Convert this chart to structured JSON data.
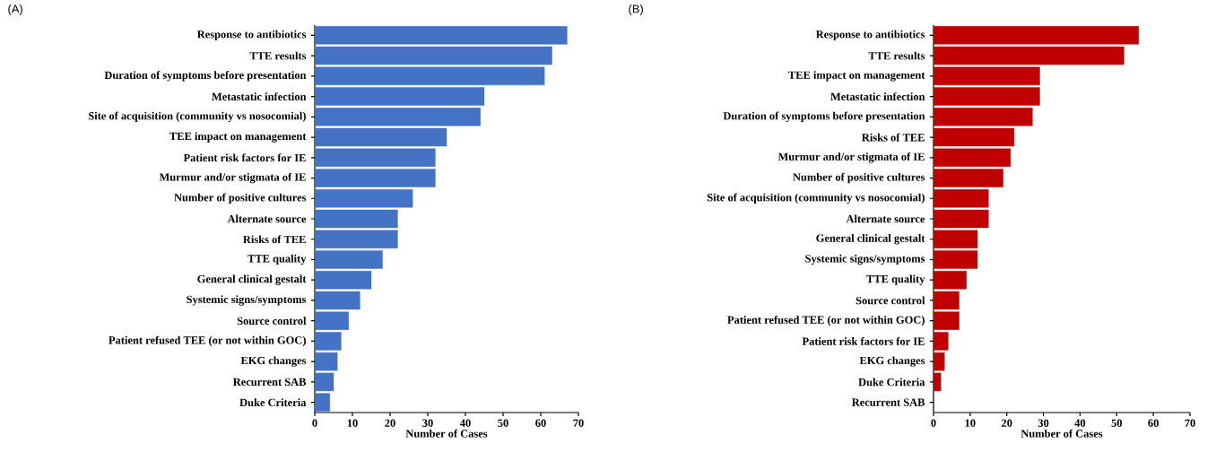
{
  "chart_data": [
    {
      "type": "bar",
      "orientation": "horizontal",
      "title": "(A)",
      "xlabel": "Number of Cases",
      "categories": [
        "Response to antibiotics",
        "TTE results",
        "Duration of symptoms before presentation",
        "Metastatic infection",
        "Site of acquisition (community vs nosocomial)",
        "TEE impact on management",
        "Patient risk factors for IE",
        "Murmur and/or stigmata of IE",
        "Number of positive cultures",
        "Alternate source",
        "Risks of TEE",
        "TTE quality",
        "General clinical gestalt",
        "Systemic signs/symptoms",
        "Source control",
        "Patient refused TEE (or not within GOC)",
        "EKG changes",
        "Recurrent SAB",
        "Duke Criteria"
      ],
      "values": [
        67,
        63,
        61,
        45,
        44,
        35,
        32,
        32,
        26,
        22,
        22,
        18,
        15,
        12,
        9,
        7,
        6,
        5,
        4
      ],
      "color": "#4472c4",
      "xlim": [
        0,
        70
      ],
      "xticks": [
        0,
        10,
        20,
        30,
        40,
        50,
        60,
        70
      ]
    },
    {
      "type": "bar",
      "orientation": "horizontal",
      "title": "(B)",
      "xlabel": "Number of Cases",
      "categories": [
        "Response to antibiotics",
        "TTE results",
        "TEE impact on management",
        "Metastatic infection",
        "Duration of symptoms before presentation",
        "Risks of TEE",
        "Murmur and/or stigmata of IE",
        "Number of positive cultures",
        "Site of acquisition (community vs nosocomial)",
        "Alternate source",
        "General clinical gestalt",
        "Systemic signs/symptoms",
        "TTE quality",
        "Source control",
        "Patient refused TEE (or not within GOC)",
        "Patient risk factors for IE",
        "EKG changes",
        "Duke Criteria",
        "Recurrent SAB"
      ],
      "values": [
        56,
        52,
        29,
        29,
        27,
        22,
        21,
        19,
        15,
        15,
        12,
        12,
        9,
        7,
        7,
        4,
        3,
        2,
        0
      ],
      "color": "#c00000",
      "xlim": [
        0,
        70
      ],
      "xticks": [
        0,
        10,
        20,
        30,
        40,
        50,
        60,
        70
      ]
    }
  ]
}
